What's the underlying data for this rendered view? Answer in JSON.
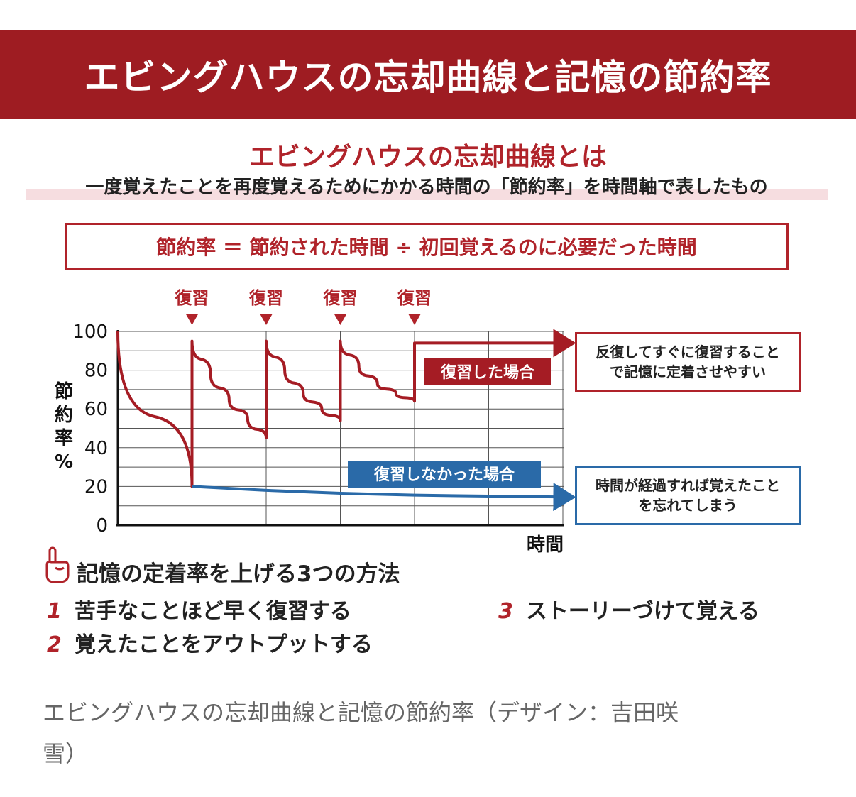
{
  "banner": {
    "title": "エビングハウスの忘却曲線と記憶の節約率"
  },
  "header": {
    "subtitle": "エビングハウスの忘却曲線とは",
    "description": "一度覚えたことを再度覚えるためにかかる時間の「節約率」を時間軸で表したもの"
  },
  "formula": "節約率 ＝ 節約された時間 ÷ 初回覚えるのに必要だった時間",
  "chart_data": {
    "type": "line",
    "title": "",
    "xlabel": "時間",
    "ylabel": "節約率%",
    "ylim": [
      0,
      100
    ],
    "yticks": [
      "100",
      "80",
      "60",
      "40",
      "20",
      "0"
    ],
    "xlim": [
      0,
      6
    ],
    "grid": true,
    "review_marker_label": "復習",
    "review_markers_x": [
      1,
      2,
      3,
      4
    ],
    "series": [
      {
        "name": "復習した場合",
        "color": "#a51c24",
        "points": [
          [
            0,
            100
          ],
          [
            1,
            20
          ],
          [
            1,
            95
          ],
          [
            1.25,
            78
          ],
          [
            1.5,
            65
          ],
          [
            1.75,
            55
          ],
          [
            2,
            45
          ],
          [
            2,
            95
          ],
          [
            2.25,
            80
          ],
          [
            2.5,
            68
          ],
          [
            2.75,
            60
          ],
          [
            3,
            54
          ],
          [
            3,
            95
          ],
          [
            3.25,
            82
          ],
          [
            3.5,
            73
          ],
          [
            3.75,
            68
          ],
          [
            4,
            64
          ],
          [
            4,
            94
          ],
          [
            6.1,
            94
          ]
        ]
      },
      {
        "name": "復習しなかった場合",
        "color": "#2a6aa8",
        "points": [
          [
            1,
            20
          ],
          [
            2,
            18
          ],
          [
            3,
            16.5
          ],
          [
            4,
            15.5
          ],
          [
            5,
            15
          ],
          [
            6.1,
            14.5
          ]
        ]
      }
    ],
    "callouts": {
      "reviewed": [
        "反復してすぐに復習すること",
        "で記憶に定着させやすい"
      ],
      "not_reviewed": [
        "時間が経過すれば覚えたこと",
        "を忘れてしまう"
      ]
    }
  },
  "tips": {
    "title": "記憶の定着率を上げる3つの方法",
    "items": [
      {
        "num": "1",
        "text": "苦手なことほど早く復習する"
      },
      {
        "num": "2",
        "text": "覚えたことをアウトプットする"
      },
      {
        "num": "3",
        "text": "ストーリーづけて覚える"
      }
    ]
  },
  "caption": {
    "line1": "エビングハウスの忘却曲線と記憶の節約率（デザイン：吉田咲",
    "line2": "雪）"
  }
}
